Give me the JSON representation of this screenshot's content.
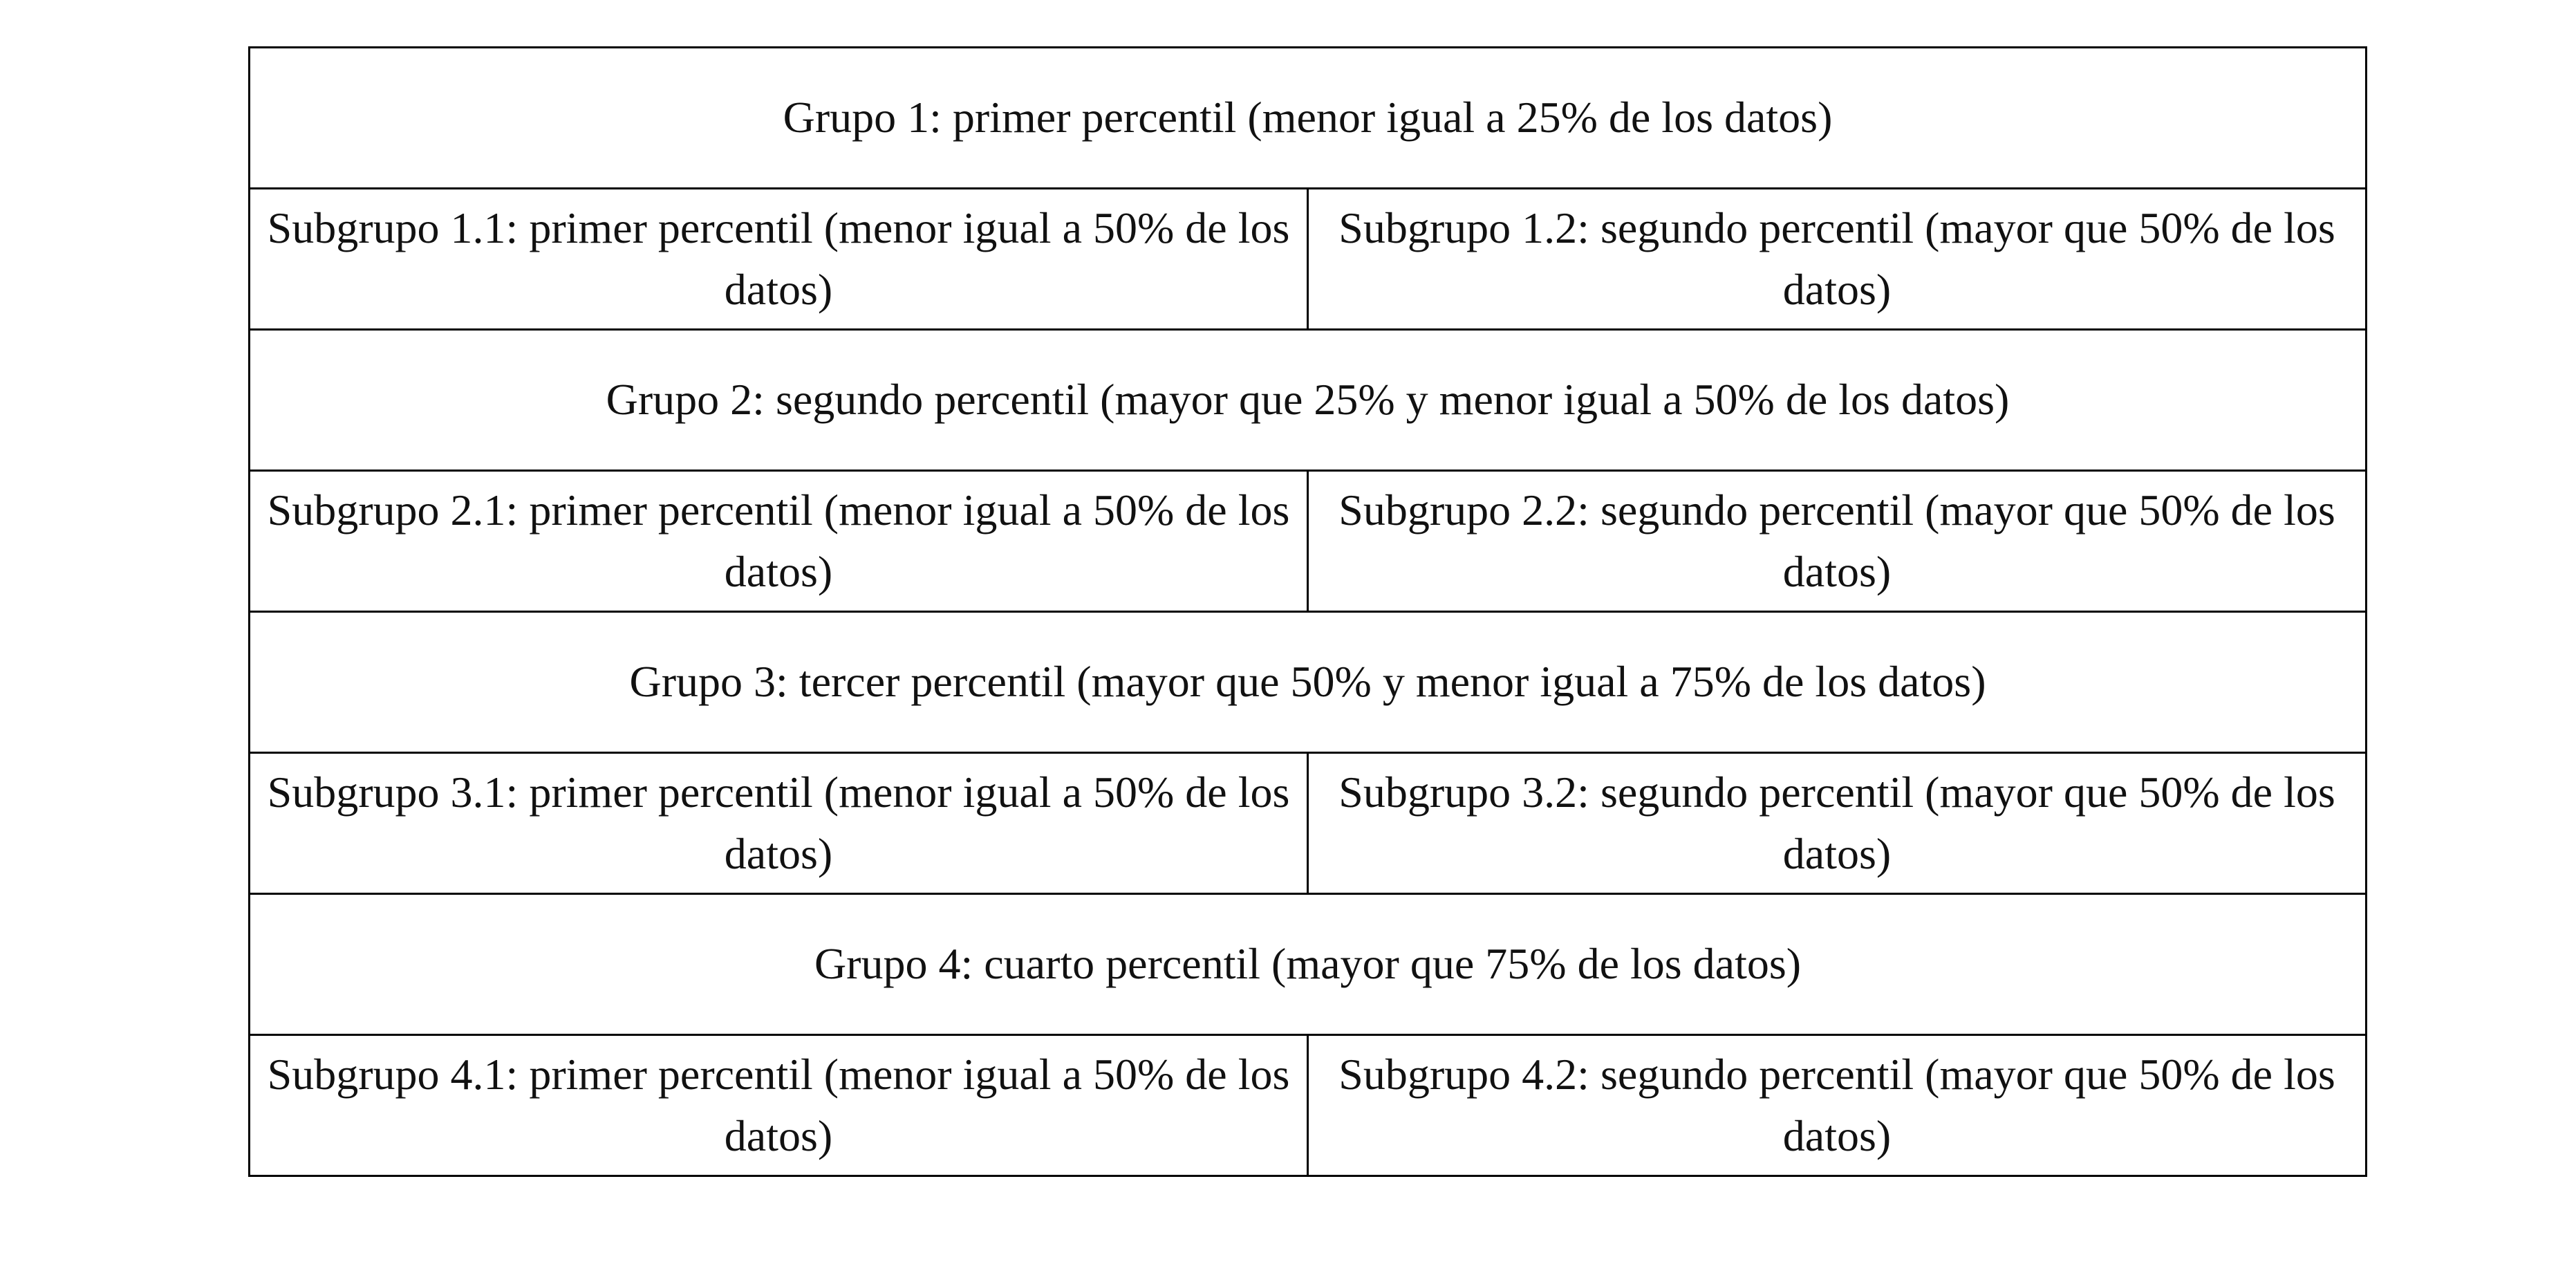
{
  "table": {
    "groups": [
      {
        "title": "Grupo 1: primer percentil (menor igual a 25% de los datos)",
        "subgroups": [
          "Subgrupo 1.1: primer percentil (menor igual a 50% de los datos)",
          "Subgrupo 1.2: segundo percentil (mayor que 50% de los datos)"
        ]
      },
      {
        "title": "Grupo 2: segundo percentil (mayor que 25% y menor igual a 50% de los datos)",
        "subgroups": [
          "Subgrupo 2.1: primer percentil (menor igual a 50% de los datos)",
          "Subgrupo 2.2: segundo percentil (mayor que 50% de los datos)"
        ]
      },
      {
        "title": "Grupo 3: tercer percentil (mayor que 50% y menor igual a 75% de los datos)",
        "subgroups": [
          "Subgrupo 3.1: primer percentil (menor igual a 50% de los datos)",
          "Subgrupo 3.2: segundo percentil (mayor que 50% de los datos)"
        ]
      },
      {
        "title": "Grupo 4: cuarto percentil (mayor que 75% de los datos)",
        "subgroups": [
          "Subgrupo 4.1: primer percentil (menor igual a 50% de los datos)",
          "Subgrupo 4.2: segundo percentil (mayor que 50% de los datos)"
        ]
      }
    ]
  }
}
